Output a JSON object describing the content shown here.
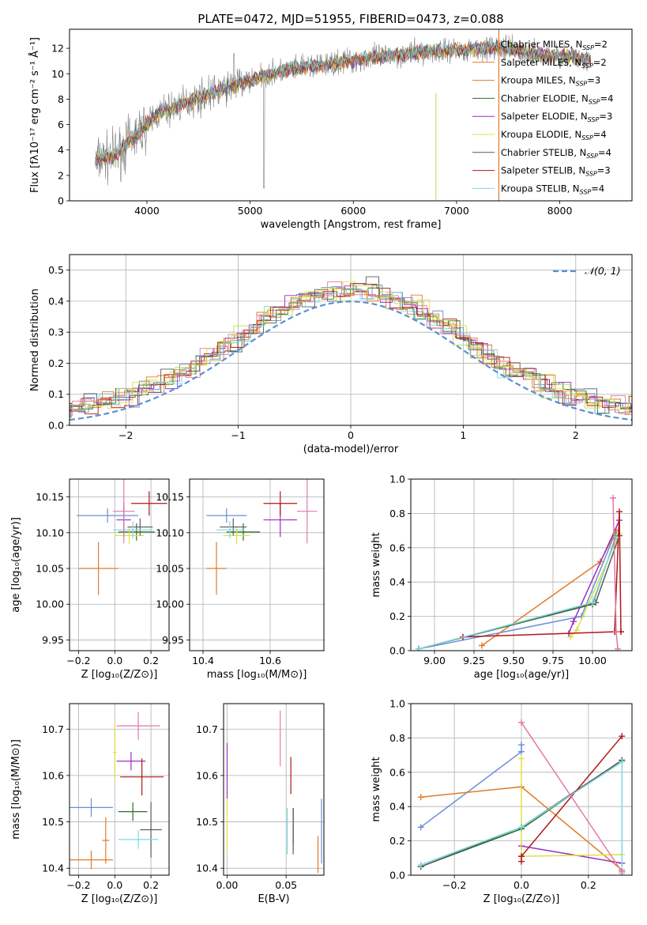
{
  "figure": {
    "title": "PLATE=0472, MJD=51955, FIBERID=0473, z=0.088"
  },
  "colors": {
    "series": [
      "#6a8fd9",
      "#e07b2a",
      "#e07b2a",
      "#2c6e2c",
      "#9b2fc0",
      "#e0e040",
      "#5a5a5a",
      "#b01818",
      "#7fd8e0"
    ],
    "pink": "#e07aaa",
    "light_green": "#b8e050",
    "gray_spectrum": "#808080",
    "normal_curve": "#5b8fd4"
  },
  "chart_data": [
    {
      "id": "spectrum",
      "type": "line",
      "title": "PLATE=0472, MJD=51955, FIBERID=0473, z=0.088",
      "xlabel": "wavelength [Angstrom, rest frame]",
      "ylabel": "Flux [fλ10⁻¹⁷ erg cm⁻² s⁻¹ Å⁻¹]",
      "xlim": [
        3250,
        8700
      ],
      "ylim": [
        0,
        13.5
      ],
      "xticks": [
        4000,
        5000,
        6000,
        7000,
        8000
      ],
      "yticks": [
        0,
        2,
        4,
        6,
        8,
        10,
        12
      ],
      "continuum": {
        "x": [
          3500,
          3700,
          3900,
          4100,
          4400,
          4700,
          5000,
          5300,
          5600,
          5900,
          6200,
          6500,
          6800,
          7100,
          7400,
          7700,
          8000,
          8300
        ],
        "y": [
          3.2,
          3.6,
          5.2,
          6.8,
          7.8,
          8.7,
          9.5,
          10.2,
          10.6,
          10.9,
          11.3,
          11.5,
          11.8,
          11.9,
          12.1,
          11.6,
          11.4,
          11.2
        ]
      },
      "legend": [
        {
          "label": "Chabrier MILES, N_SSP=2",
          "color": "#6a8fd9"
        },
        {
          "label": "Salpeter MILES, N_SSP=2",
          "color": "#e07b2a"
        },
        {
          "label": "Kroupa MILES, N_SSP=3",
          "color": "#e07b2a"
        },
        {
          "label": "Chabrier ELODIE, N_SSP=4",
          "color": "#2c6e2c"
        },
        {
          "label": "Salpeter ELODIE, N_SSP=3",
          "color": "#9b2fc0"
        },
        {
          "label": "Kroupa ELODIE, N_SSP=4",
          "color": "#e0e040"
        },
        {
          "label": "Chabrier STELIB, N_SSP=4",
          "color": "#5a5a5a"
        },
        {
          "label": "Salpeter STELIB, N_SSP=3",
          "color": "#b01818"
        },
        {
          "label": "Kroupa STELIB, N_SSP=4",
          "color": "#7fd8e0"
        }
      ],
      "legend_placement": "upper right"
    },
    {
      "id": "residuals",
      "type": "line",
      "xlabel": "(data-model)/error",
      "ylabel": "Normed distribution",
      "xlim": [
        -2.5,
        2.5
      ],
      "ylim": [
        0,
        0.55
      ],
      "xticks": [
        -2,
        -1,
        0,
        1,
        2
      ],
      "yticks": [
        0.0,
        0.1,
        0.2,
        0.3,
        0.4,
        0.5
      ],
      "normal_curve": {
        "name": "𝒩(0, 1)",
        "mean": 0,
        "sigma": 1
      },
      "grid": true,
      "legend_placement": "upper right"
    },
    {
      "id": "age-vs-Z",
      "type": "scatter",
      "xlabel": "Z [log₁₀(Z/Z⊙)]",
      "ylabel": "age  [log₁₀(age/yr)]",
      "xlim": [
        -0.25,
        0.3
      ],
      "ylim": [
        9.935,
        10.175
      ],
      "xticks": [
        -0.2,
        0.0,
        0.2
      ],
      "yticks": [
        9.95,
        10.0,
        10.05,
        10.1,
        10.15
      ],
      "points": [
        {
          "x": -0.04,
          "xerr": 0.17,
          "y": 10.124,
          "yerr": 0.01,
          "color": "#6a8fd9"
        },
        {
          "x": -0.09,
          "xerr": 0.11,
          "y": 10.05,
          "yerr": 0.037,
          "color": "#e07b2a"
        },
        {
          "x": 0.12,
          "xerr": 0.1,
          "y": 10.101,
          "yerr": 0.012,
          "color": "#2c6e2c"
        },
        {
          "x": 0.05,
          "xerr": 0.04,
          "y": 10.118,
          "yerr": 0.024,
          "color": "#9b2fc0"
        },
        {
          "x": 0.08,
          "xerr": 0.08,
          "y": 10.096,
          "yerr": 0.012,
          "color": "#e0e040"
        },
        {
          "x": 0.14,
          "xerr": 0.07,
          "y": 10.108,
          "yerr": 0.012,
          "color": "#5a5a5a"
        },
        {
          "x": 0.19,
          "xerr": 0.1,
          "y": 10.141,
          "yerr": 0.017,
          "color": "#b01818"
        },
        {
          "x": 0.1,
          "xerr": 0.11,
          "y": 10.104,
          "yerr": 0.012,
          "color": "#7fd8e0"
        },
        {
          "x": 0.05,
          "xerr": 0.06,
          "y": 10.13,
          "yerr": 0.045,
          "color": "#e07aaa"
        }
      ]
    },
    {
      "id": "age-vs-mass",
      "type": "scatter",
      "xlabel": "mass [log₁₀(M/M⊙)]",
      "ylabel": "",
      "xlim": [
        10.36,
        10.76
      ],
      "ylim": [
        9.935,
        10.175
      ],
      "xticks": [
        10.4,
        10.6
      ],
      "yticks": [
        9.95,
        10.0,
        10.05,
        10.1,
        10.15
      ],
      "points": [
        {
          "x": 10.47,
          "xerr": 0.06,
          "y": 10.124,
          "yerr": 0.01,
          "color": "#6a8fd9"
        },
        {
          "x": 10.44,
          "xerr": 0.03,
          "y": 10.05,
          "yerr": 0.037,
          "color": "#e07b2a"
        },
        {
          "x": 10.52,
          "xerr": 0.05,
          "y": 10.101,
          "yerr": 0.012,
          "color": "#2c6e2c"
        },
        {
          "x": 10.63,
          "xerr": 0.05,
          "y": 10.118,
          "yerr": 0.024,
          "color": "#9b2fc0"
        },
        {
          "x": 10.5,
          "xerr": 0.04,
          "y": 10.096,
          "yerr": 0.012,
          "color": "#e0e040"
        },
        {
          "x": 10.49,
          "xerr": 0.04,
          "y": 10.108,
          "yerr": 0.012,
          "color": "#5a5a5a"
        },
        {
          "x": 10.63,
          "xerr": 0.05,
          "y": 10.141,
          "yerr": 0.017,
          "color": "#b01818"
        },
        {
          "x": 10.48,
          "xerr": 0.04,
          "y": 10.104,
          "yerr": 0.012,
          "color": "#7fd8e0"
        },
        {
          "x": 10.71,
          "xerr": 0.03,
          "y": 10.13,
          "yerr": 0.045,
          "color": "#e07aaa"
        }
      ]
    },
    {
      "id": "weight-vs-age",
      "type": "line",
      "xlabel": "age  [log₁₀(age/yr)]",
      "ylabel": "mass weight",
      "xlim": [
        8.85,
        10.25
      ],
      "ylim": [
        0,
        1.0
      ],
      "xticks": [
        9.0,
        9.25,
        9.5,
        9.75,
        10.0
      ],
      "xtick_labels": [
        "9.00",
        "9.25",
        "9.50",
        "9.75",
        "10.00"
      ],
      "yticks": [
        0.0,
        0.2,
        0.4,
        0.6,
        0.8,
        1.0
      ],
      "series": [
        {
          "color": "#6a8fd9",
          "x": [
            8.9,
            9.93,
            10.15
          ],
          "y": [
            0.01,
            0.2,
            0.7
          ]
        },
        {
          "color": "#e07b2a",
          "x": [
            9.3,
            10.05,
            10.15
          ],
          "y": [
            0.03,
            0.52,
            0.7
          ]
        },
        {
          "color": "#2c6e2c",
          "x": [
            8.9,
            10.0,
            10.15
          ],
          "y": [
            0.01,
            0.27,
            0.67
          ]
        },
        {
          "color": "#9b2fc0",
          "x": [
            9.85,
            9.88,
            10.17
          ],
          "y": [
            0.1,
            0.17,
            0.76
          ]
        },
        {
          "color": "#e0e040",
          "x": [
            9.86,
            9.9,
            10.17
          ],
          "y": [
            0.08,
            0.12,
            0.68
          ]
        },
        {
          "color": "#5a5a5a",
          "x": [
            8.9,
            10.02,
            10.17
          ],
          "y": [
            0.01,
            0.28,
            0.67
          ]
        },
        {
          "color": "#b01818",
          "x": [
            9.18,
            10.14,
            10.17,
            10.18
          ],
          "y": [
            0.08,
            0.11,
            0.81,
            0.11
          ]
        },
        {
          "color": "#7fd8e0",
          "x": [
            8.9,
            10.0,
            10.15
          ],
          "y": [
            0.01,
            0.28,
            0.66
          ]
        },
        {
          "color": "#e07aaa",
          "x": [
            10.13,
            10.15,
            10.16
          ],
          "y": [
            0.89,
            0.11,
            0.01
          ]
        }
      ],
      "grid": true
    },
    {
      "id": "mass-vs-Z",
      "type": "scatter",
      "xlabel": "Z [log₁₀(Z/Z⊙)]",
      "ylabel": "mass [log₁₀(M/M⊙)]",
      "xlim": [
        -0.25,
        0.3
      ],
      "ylim": [
        10.385,
        10.755
      ],
      "xticks": [
        -0.2,
        0.0,
        0.2
      ],
      "yticks": [
        10.4,
        10.5,
        10.6,
        10.7
      ],
      "points": [
        {
          "x": -0.13,
          "xerr": 0.12,
          "y": 10.531,
          "yerr": 0.02,
          "color": "#6a8fd9"
        },
        {
          "x": -0.13,
          "xerr": 0.12,
          "y": 10.418,
          "yerr": 0.02,
          "color": "#e07b2a"
        },
        {
          "x": -0.05,
          "xerr": 0.02,
          "y": 10.46,
          "yerr": 0.05,
          "color": "#e07b2a"
        },
        {
          "x": 0.1,
          "xerr": 0.08,
          "y": 10.522,
          "yerr": 0.02,
          "color": "#2c6e2c"
        },
        {
          "x": 0.09,
          "xerr": 0.08,
          "y": 10.631,
          "yerr": 0.02,
          "color": "#9b2fc0"
        },
        {
          "x": 0.0,
          "xerr": 0.01,
          "y": 10.65,
          "yerr": 0.06,
          "color": "#e0e040"
        },
        {
          "x": 0.2,
          "xerr": 0.06,
          "y": 10.483,
          "yerr": 0.06,
          "color": "#5a5a5a"
        },
        {
          "x": 0.15,
          "xerr": 0.12,
          "y": 10.597,
          "yerr": 0.04,
          "color": "#b01818"
        },
        {
          "x": 0.13,
          "xerr": 0.11,
          "y": 10.462,
          "yerr": 0.02,
          "color": "#7fd8e0"
        },
        {
          "x": 0.13,
          "xerr": 0.12,
          "y": 10.707,
          "yerr": 0.03,
          "color": "#e07aaa"
        }
      ]
    },
    {
      "id": "mass-vs-EBV",
      "type": "scatter",
      "xlabel": "E(B-V)",
      "ylabel": "",
      "xlim": [
        -0.003,
        0.082
      ],
      "ylim": [
        10.385,
        10.755
      ],
      "xticks": [
        0.0,
        0.05
      ],
      "xtick_labels": [
        "0.00",
        "0.05"
      ],
      "yticks": [
        10.4,
        10.5,
        10.6,
        10.7
      ],
      "points": [
        {
          "x": 0.08,
          "y": 10.48,
          "yerr": 0.07,
          "color": "#6a8fd9"
        },
        {
          "x": 0.077,
          "y": 10.43,
          "yerr": 0.04,
          "color": "#e07b2a"
        },
        {
          "x": 0.056,
          "y": 10.49,
          "yerr": 0.04,
          "color": "#2c6e2c"
        },
        {
          "x": 0.0,
          "y": 10.61,
          "yerr": 0.06,
          "color": "#9b2fc0"
        },
        {
          "x": 0.0,
          "y": 10.49,
          "yerr": 0.06,
          "color": "#e0e040"
        },
        {
          "x": 0.056,
          "y": 10.48,
          "yerr": 0.05,
          "color": "#5a5a5a"
        },
        {
          "x": 0.054,
          "y": 10.6,
          "yerr": 0.04,
          "color": "#b01818"
        },
        {
          "x": 0.051,
          "y": 10.48,
          "yerr": 0.05,
          "color": "#7fd8e0"
        },
        {
          "x": 0.045,
          "y": 10.68,
          "yerr": 0.06,
          "color": "#e07aaa"
        }
      ]
    },
    {
      "id": "weight-vs-Z",
      "type": "line",
      "xlabel": "Z [log₁₀(Z/Z⊙)]",
      "ylabel": "mass weight",
      "xlim": [
        -0.33,
        0.33
      ],
      "ylim": [
        0,
        1.0
      ],
      "xticks": [
        -0.2,
        0.0,
        0.2
      ],
      "yticks": [
        0.0,
        0.2,
        0.4,
        0.6,
        0.8,
        1.0
      ],
      "series": [
        {
          "color": "#6a8fd9",
          "x": [
            -0.3,
            0.0,
            0.0
          ],
          "y": [
            0.28,
            0.72,
            0.76
          ]
        },
        {
          "color": "#e07b2a",
          "x": [
            -0.3,
            0.0,
            0.3
          ],
          "y": [
            0.455,
            0.515,
            0.03
          ]
        },
        {
          "color": "#2c6e2c",
          "x": [
            -0.3,
            0.0,
            0.3
          ],
          "y": [
            0.05,
            0.27,
            0.67
          ]
        },
        {
          "color": "#9b2fc0",
          "x": [
            0.0,
            0.3
          ],
          "y": [
            0.17,
            0.07
          ]
        },
        {
          "color": "#e0e040",
          "x": [
            0.0,
            0.0,
            0.3
          ],
          "y": [
            0.68,
            0.11,
            0.12
          ]
        },
        {
          "color": "#5a5a5a",
          "x": [
            -0.3,
            0.0,
            0.3
          ],
          "y": [
            0.05,
            0.28,
            0.67
          ]
        },
        {
          "color": "#b01818",
          "x": [
            0.0,
            0.0,
            0.3
          ],
          "y": [
            0.08,
            0.11,
            0.81
          ]
        },
        {
          "color": "#7fd8e0",
          "x": [
            -0.3,
            0.0,
            0.3,
            0.3
          ],
          "y": [
            0.06,
            0.28,
            0.66,
            0.01
          ]
        },
        {
          "color": "#e07aaa",
          "x": [
            0.0,
            0.3
          ],
          "y": [
            0.89,
            0.02
          ]
        }
      ],
      "grid": true
    }
  ]
}
